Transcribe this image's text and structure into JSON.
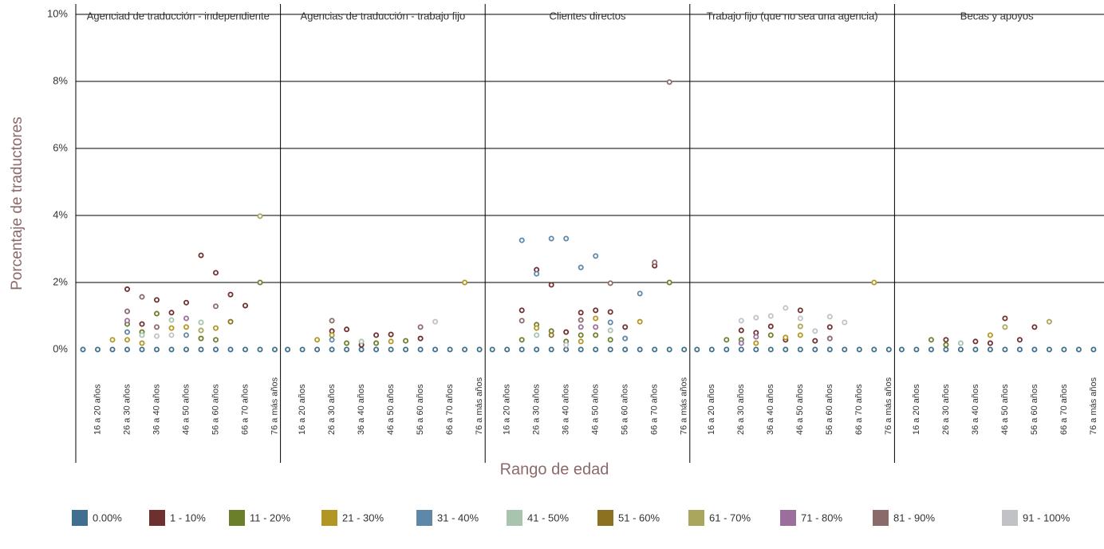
{
  "chart_data": {
    "type": "dot",
    "ylabel": "Porcentaje de traductores",
    "xlabel": "Rango de edad",
    "categories": [
      null,
      "16 a 20 años",
      null,
      "26 a 30 años",
      null,
      "36 a 40 años",
      null,
      "46 a 50 años",
      null,
      "56 a 60 años",
      null,
      "66 a 70 años",
      null,
      "76 a más años"
    ],
    "ylim": [
      0,
      10
    ],
    "yticks": [
      {
        "value": 0,
        "label": "0%"
      },
      {
        "value": 2,
        "label": "2%"
      },
      {
        "value": 4,
        "label": "4%"
      },
      {
        "value": 6,
        "label": "6%"
      },
      {
        "value": 8,
        "label": "8%"
      },
      {
        "value": 10,
        "label": "10%"
      }
    ],
    "grid": true,
    "series": [
      {
        "name": "0.00%",
        "color": "#3f6e8f"
      },
      {
        "name": "1 - 10%",
        "color": "#6e2f2f"
      },
      {
        "name": "11 - 20%",
        "color": "#6b7f2a"
      },
      {
        "name": "21 - 30%",
        "color": "#b39622"
      },
      {
        "name": "31 - 40%",
        "color": "#5f88a8"
      },
      {
        "name": "41 - 50%",
        "color": "#a8c4ae"
      },
      {
        "name": "51 - 60%",
        "color": "#8c7220"
      },
      {
        "name": "61 - 70%",
        "color": "#aaa65e"
      },
      {
        "name": "71 - 80%",
        "color": "#9b6e9c"
      },
      {
        "name": "81 - 90%",
        "color": "#8c6a6a"
      },
      {
        "name": "91 - 100%",
        "color": "#c0c2c6"
      }
    ],
    "panels": [
      {
        "title": "Agenciad de traducción - independiente",
        "values": [
          [
            0,
            0,
            0,
            0,
            0,
            0,
            0,
            0,
            0,
            0,
            0,
            0,
            0,
            0
          ],
          [
            null,
            null,
            null,
            1.8,
            0.76,
            1.48,
            1.1,
            1.4,
            2.81,
            2.29,
            1.64,
            1.31,
            null,
            null
          ],
          [
            null,
            null,
            null,
            0.76,
            0.52,
            1.07,
            null,
            null,
            0.33,
            0.29,
            null,
            null,
            2.0,
            null
          ],
          [
            null,
            null,
            0.29,
            0.29,
            0.19,
            null,
            0.64,
            0.67,
            null,
            0.64,
            null,
            null,
            null,
            null
          ],
          [
            null,
            null,
            null,
            0.52,
            null,
            null,
            null,
            0.43,
            null,
            null,
            null,
            null,
            null,
            null
          ],
          [
            null,
            null,
            null,
            null,
            0.43,
            null,
            0.88,
            null,
            0.81,
            null,
            null,
            null,
            null,
            null
          ],
          [
            null,
            null,
            null,
            null,
            null,
            null,
            null,
            null,
            null,
            null,
            0.83,
            null,
            null,
            null
          ],
          [
            null,
            null,
            null,
            null,
            null,
            null,
            null,
            null,
            0.57,
            null,
            null,
            null,
            3.98,
            null
          ],
          [
            null,
            null,
            null,
            0.86,
            null,
            null,
            null,
            0.93,
            null,
            null,
            null,
            null,
            null,
            null
          ],
          [
            null,
            null,
            null,
            1.14,
            1.57,
            0.67,
            null,
            null,
            null,
            1.29,
            null,
            null,
            null,
            null
          ],
          [
            null,
            null,
            null,
            null,
            null,
            0.4,
            0.43,
            null,
            null,
            null,
            null,
            null,
            null,
            null
          ]
        ]
      },
      {
        "title": "Agencias de traducción - trabajo fijo",
        "values": [
          [
            0,
            0,
            0,
            0,
            0,
            0,
            0,
            0,
            0,
            0,
            0,
            0,
            0,
            0
          ],
          [
            null,
            null,
            null,
            0.55,
            0.6,
            0.14,
            0.43,
            0.45,
            null,
            0.33,
            null,
            null,
            null,
            null
          ],
          [
            null,
            null,
            null,
            null,
            0.19,
            null,
            0.19,
            null,
            0.26,
            null,
            null,
            null,
            null,
            null
          ],
          [
            null,
            null,
            0.29,
            0.43,
            null,
            null,
            null,
            0.24,
            null,
            null,
            null,
            null,
            2.0,
            null
          ],
          [
            null,
            null,
            null,
            0.29,
            null,
            null,
            null,
            null,
            null,
            null,
            null,
            null,
            null,
            null
          ],
          [
            null,
            null,
            null,
            null,
            null,
            0.24,
            null,
            null,
            null,
            null,
            null,
            null,
            null,
            null
          ],
          [
            null,
            null,
            null,
            null,
            null,
            null,
            null,
            null,
            null,
            null,
            null,
            null,
            null,
            null
          ],
          [
            null,
            null,
            null,
            null,
            null,
            null,
            null,
            null,
            null,
            null,
            null,
            null,
            null,
            null
          ],
          [
            null,
            null,
            null,
            null,
            null,
            null,
            null,
            null,
            null,
            null,
            null,
            null,
            null,
            null
          ],
          [
            null,
            null,
            null,
            0.86,
            null,
            null,
            null,
            null,
            null,
            0.67,
            null,
            null,
            null,
            null
          ],
          [
            null,
            null,
            null,
            null,
            null,
            null,
            null,
            null,
            null,
            null,
            0.83,
            null,
            null,
            null
          ]
        ]
      },
      {
        "title": "Clientes directos",
        "values": [
          [
            0,
            0,
            0,
            0,
            0,
            0,
            0,
            0,
            0,
            0,
            0,
            0,
            0,
            0
          ],
          [
            null,
            null,
            1.17,
            2.38,
            1.93,
            0.52,
            1.1,
            1.17,
            1.12,
            0.67,
            null,
            2.5,
            null,
            null
          ],
          [
            null,
            null,
            0.29,
            0.74,
            0.55,
            0.24,
            0.43,
            0.43,
            0.29,
            null,
            null,
            null,
            2.0,
            null
          ],
          [
            null,
            null,
            null,
            0.64,
            null,
            null,
            0.24,
            0.93,
            null,
            null,
            0.83,
            null,
            null,
            null
          ],
          [
            null,
            null,
            3.26,
            2.26,
            3.31,
            3.31,
            2.45,
            2.79,
            0.81,
            0.33,
            1.67,
            null,
            null,
            null
          ],
          [
            null,
            null,
            null,
            0.43,
            null,
            null,
            null,
            null,
            0.57,
            null,
            null,
            null,
            null,
            null
          ],
          [
            null,
            null,
            null,
            null,
            0.43,
            null,
            null,
            null,
            null,
            null,
            null,
            null,
            null,
            null
          ],
          [
            null,
            null,
            null,
            null,
            null,
            null,
            null,
            null,
            null,
            null,
            null,
            null,
            null,
            null
          ],
          [
            null,
            null,
            null,
            null,
            null,
            null,
            0.67,
            0.67,
            null,
            null,
            null,
            null,
            null,
            null
          ],
          [
            null,
            null,
            0.86,
            null,
            null,
            null,
            0.88,
            null,
            1.98,
            null,
            null,
            2.6,
            7.98,
            null
          ],
          [
            null,
            null,
            null,
            null,
            null,
            0.14,
            null,
            null,
            null,
            null,
            null,
            null,
            null,
            null
          ]
        ]
      },
      {
        "title": "Trabajo fijo (que no sea una agencia)",
        "values": [
          [
            0,
            0,
            0,
            0,
            0,
            0,
            0,
            0,
            0,
            0,
            0,
            0,
            0,
            0
          ],
          [
            null,
            null,
            null,
            0.57,
            0.5,
            0.69,
            0.29,
            1.17,
            0.26,
            0.67,
            null,
            null,
            null,
            null
          ],
          [
            null,
            null,
            0.29,
            0.29,
            null,
            0.43,
            null,
            null,
            null,
            null,
            null,
            null,
            null,
            null
          ],
          [
            null,
            null,
            null,
            null,
            0.19,
            null,
            0.36,
            0.43,
            null,
            null,
            null,
            null,
            2.0,
            null
          ],
          [
            null,
            null,
            null,
            null,
            null,
            null,
            null,
            null,
            null,
            null,
            null,
            null,
            null,
            null
          ],
          [
            null,
            null,
            null,
            null,
            null,
            null,
            null,
            null,
            null,
            null,
            null,
            null,
            null,
            null
          ],
          [
            null,
            null,
            null,
            null,
            null,
            null,
            null,
            null,
            null,
            null,
            null,
            null,
            null,
            null
          ],
          [
            null,
            null,
            null,
            null,
            null,
            null,
            null,
            0.69,
            null,
            null,
            null,
            null,
            null,
            null
          ],
          [
            null,
            null,
            null,
            0.19,
            0.38,
            null,
            null,
            null,
            null,
            null,
            null,
            null,
            null,
            null
          ],
          [
            null,
            null,
            null,
            null,
            null,
            null,
            null,
            null,
            null,
            0.33,
            null,
            null,
            null,
            null
          ],
          [
            null,
            null,
            null,
            0.86,
            0.95,
            1.0,
            1.24,
            0.93,
            0.55,
            0.98,
            0.81,
            null,
            null,
            null
          ]
        ]
      },
      {
        "title": "Becas y apoyos",
        "values": [
          [
            0,
            0,
            0,
            0,
            0,
            0,
            0,
            0,
            0,
            0,
            0,
            0,
            0,
            0
          ],
          [
            null,
            null,
            null,
            0.29,
            null,
            0.24,
            0.19,
            0.93,
            0.29,
            0.67,
            null,
            null,
            null,
            null
          ],
          [
            null,
            null,
            0.29,
            0.14,
            null,
            null,
            null,
            null,
            null,
            null,
            null,
            null,
            null,
            null
          ],
          [
            null,
            null,
            null,
            null,
            null,
            null,
            0.43,
            null,
            null,
            null,
            null,
            null,
            null,
            null
          ],
          [
            null,
            null,
            null,
            null,
            null,
            null,
            null,
            null,
            null,
            null,
            null,
            null,
            null,
            null
          ],
          [
            null,
            null,
            null,
            null,
            0.19,
            null,
            null,
            null,
            null,
            null,
            null,
            null,
            null,
            null
          ],
          [
            null,
            null,
            null,
            null,
            null,
            null,
            null,
            null,
            null,
            null,
            null,
            null,
            null,
            null
          ],
          [
            null,
            null,
            null,
            null,
            null,
            null,
            null,
            0.67,
            null,
            null,
            0.83,
            null,
            null,
            null
          ],
          [
            null,
            null,
            null,
            null,
            null,
            null,
            null,
            null,
            null,
            null,
            null,
            null,
            null,
            null
          ],
          [
            null,
            null,
            null,
            null,
            null,
            null,
            null,
            null,
            null,
            null,
            null,
            null,
            null,
            null
          ],
          [
            null,
            null,
            null,
            null,
            null,
            null,
            null,
            null,
            null,
            null,
            null,
            null,
            null,
            null
          ]
        ]
      }
    ]
  }
}
